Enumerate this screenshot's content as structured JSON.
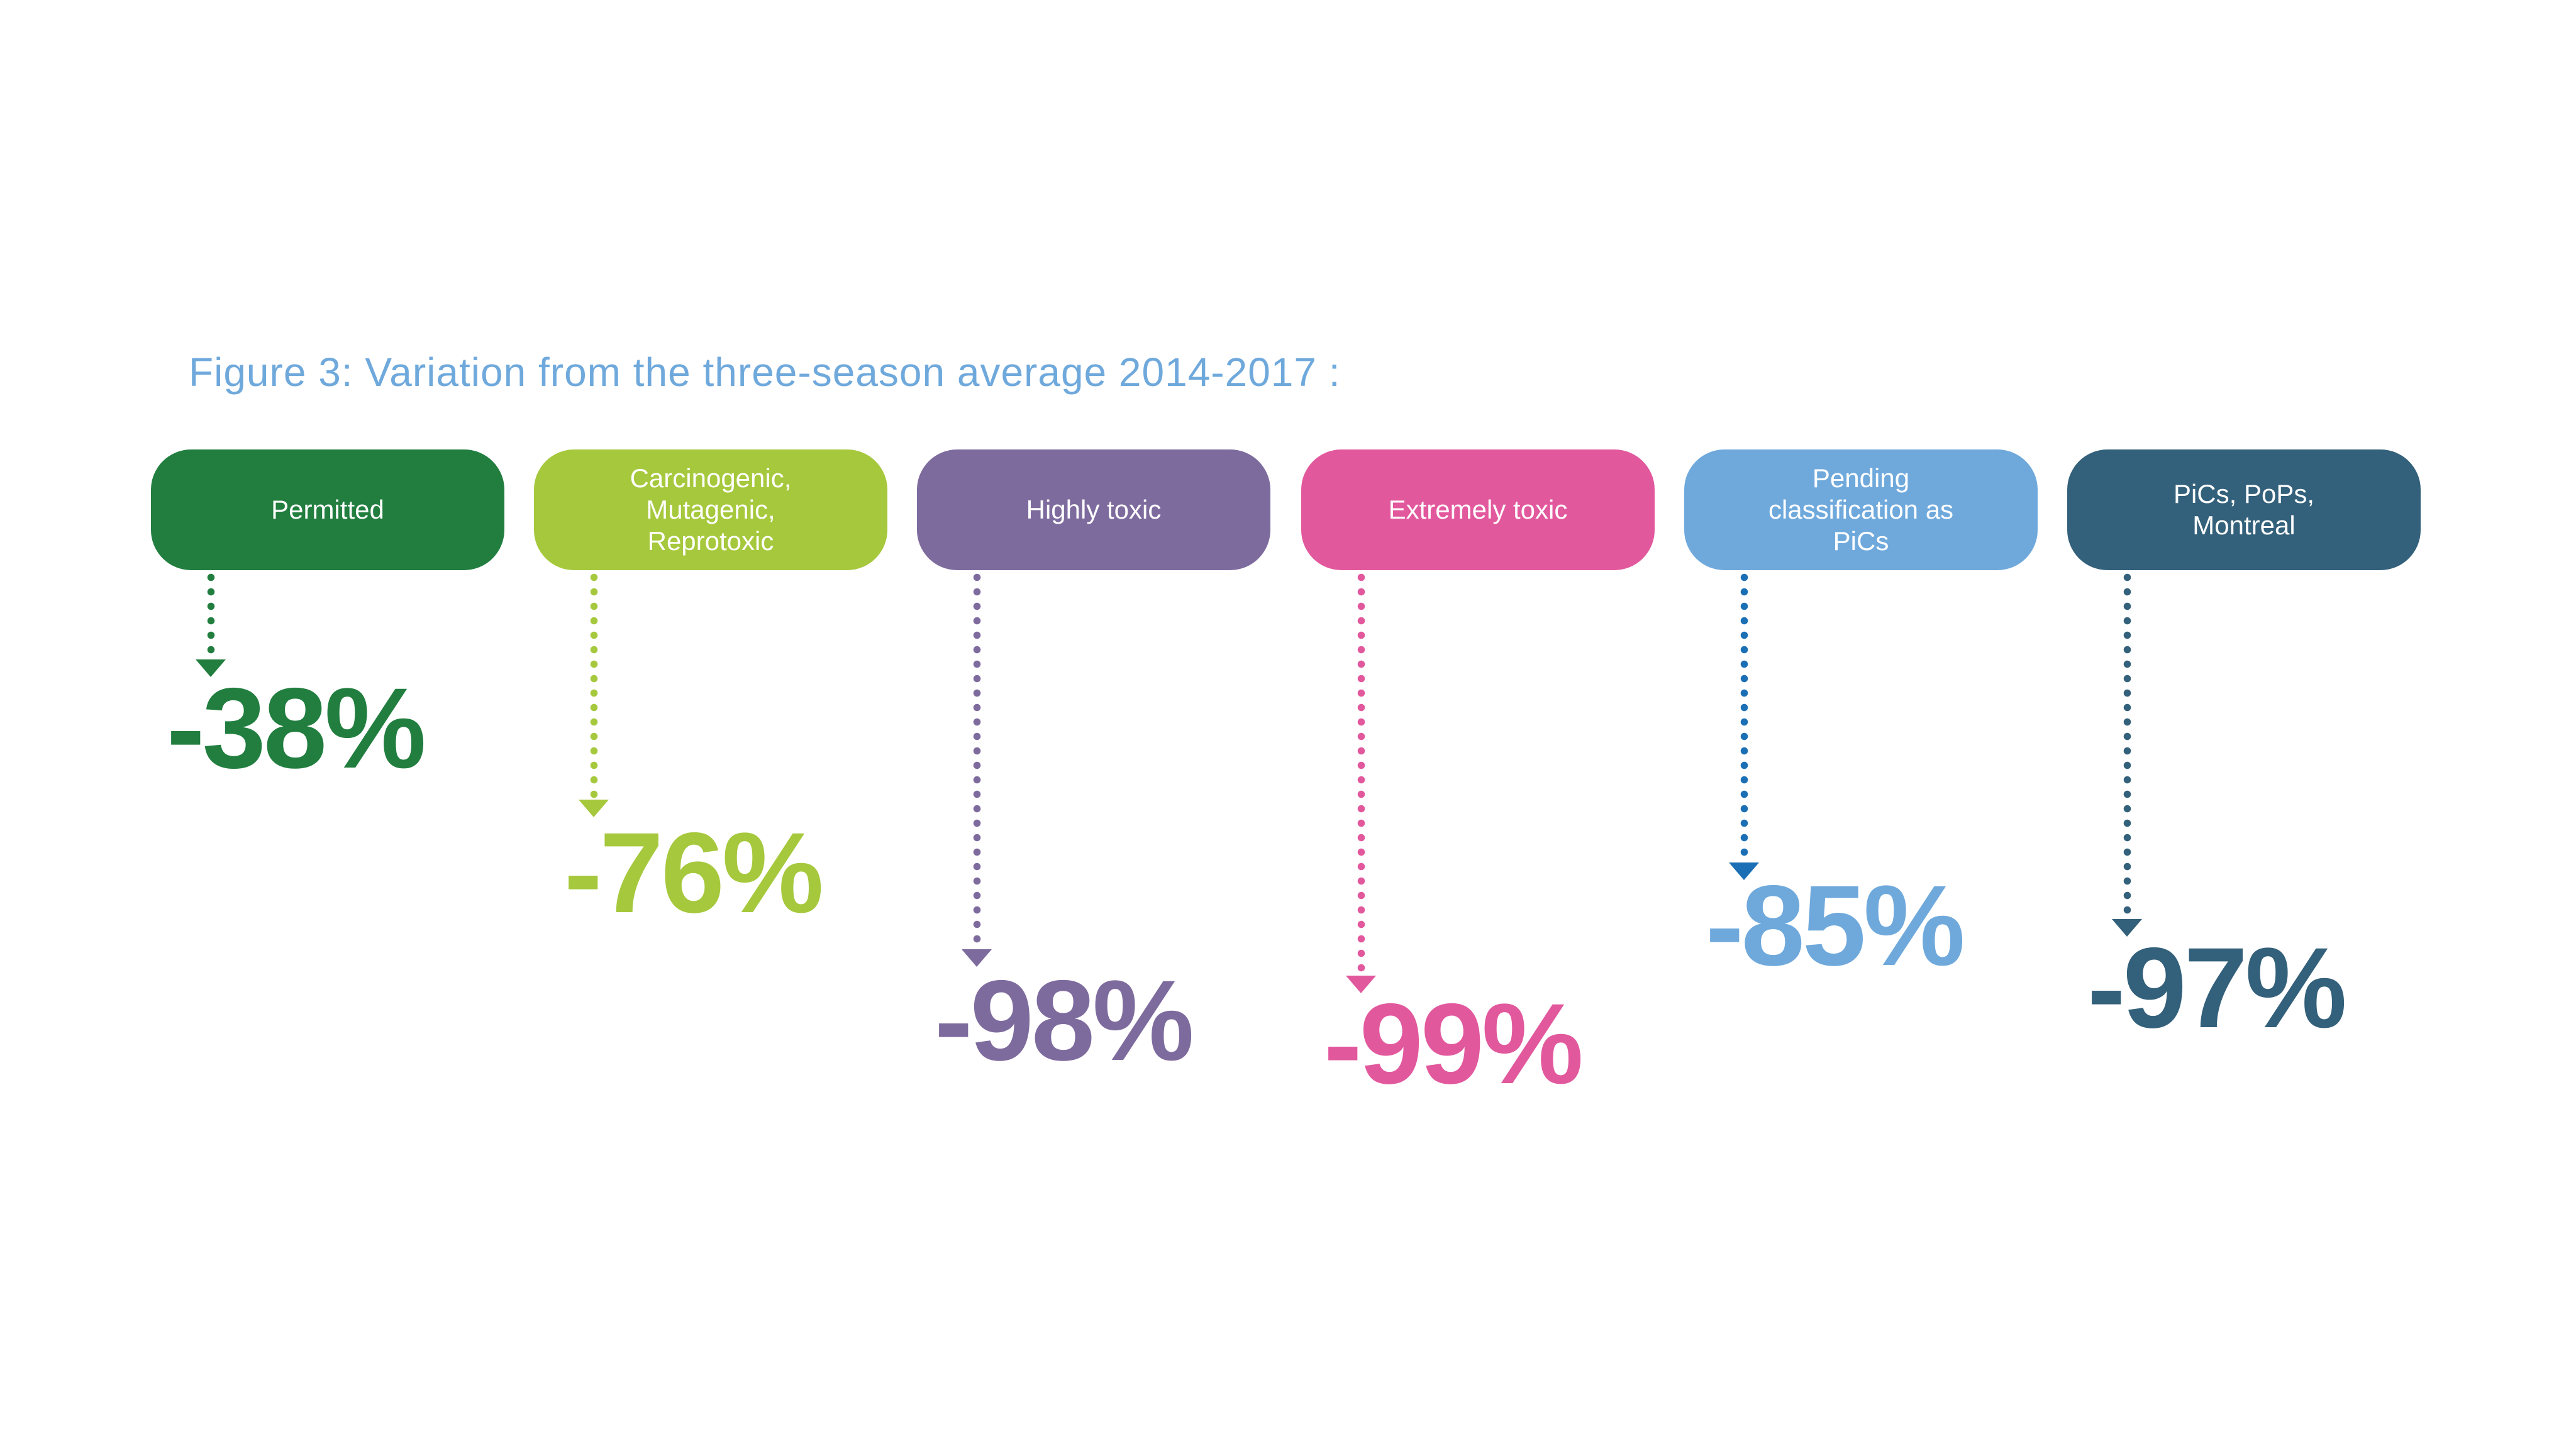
{
  "title": {
    "text": "Figure 3: Variation from the three-season average 2014-2017 :",
    "color": "#6FA9DC"
  },
  "chart_data": {
    "type": "bar",
    "title": "Figure 3: Variation from the three-season average 2014-2017 :",
    "categories": [
      "Permitted",
      "Carcinogenic, Mutagenic, Reprotoxic",
      "Highly toxic",
      "Extremely toxic",
      "Pending classification as PiCs",
      "PiCs, PoPs, Montreal"
    ],
    "values": [
      -38,
      -76,
      -98,
      -99,
      -85,
      -97
    ],
    "unit": "%",
    "xlabel": "",
    "ylabel": "",
    "legend": "none",
    "grid": false,
    "style": "category pills with downward dotted arrows, arrow length proportional to decrease",
    "colors": [
      "#217E3F",
      "#A6C83C",
      "#7E6B9E",
      "#E2589D",
      "#6FA9DC",
      "#33607A"
    ]
  },
  "columns": [
    {
      "label": "Permitted",
      "value_label": "-38%",
      "value": -38,
      "color": "#217E3F",
      "arrow_color": "#217E3F",
      "text_color": "#217E3F"
    },
    {
      "label": "Carcinogenic,\nMutagenic,\nReprotoxic",
      "value_label": "-76%",
      "value": -76,
      "color": "#A6C83C",
      "arrow_color": "#A6C83C",
      "text_color": "#A6C83C"
    },
    {
      "label": "Highly toxic",
      "value_label": "-98%",
      "value": -98,
      "color": "#7E6B9E",
      "arrow_color": "#7E6B9E",
      "text_color": "#7E6B9E"
    },
    {
      "label": "Extremely toxic",
      "value_label": "-99%",
      "value": -99,
      "color": "#E2589D",
      "arrow_color": "#E2589D",
      "text_color": "#E2589D"
    },
    {
      "label": "Pending\nclassification as\nPiCs",
      "value_label": "-85%",
      "value": -85,
      "color": "#6FA9DC",
      "arrow_color": "#1B6FB5",
      "text_color": "#6FA9DC"
    },
    {
      "label": "PiCs, PoPs,\nMontreal",
      "value_label": "-97%",
      "value": -97,
      "color": "#33607A",
      "arrow_color": "#33607A",
      "text_color": "#33607A"
    }
  ]
}
